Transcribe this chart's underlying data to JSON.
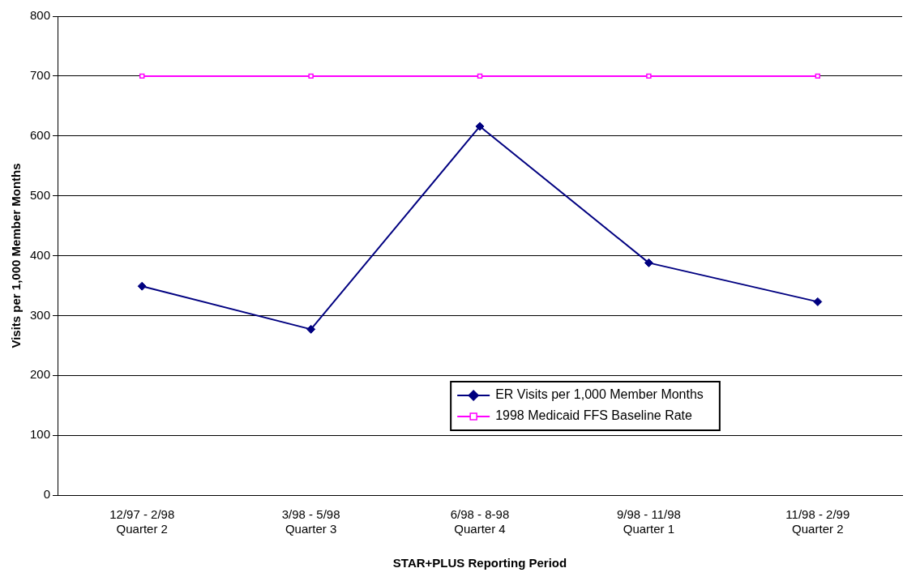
{
  "chart_data": {
    "type": "line",
    "xlabel": "STAR+PLUS Reporting Period",
    "ylabel": "Visits per 1,000 Member Months",
    "categories": [
      "12/97 - 2/98\nQuarter 2",
      "3/98 - 5/98\nQuarter 3",
      "6/98 - 8-98\nQuarter 4",
      "9/98 - 11/98\nQuarter 1",
      "11/98 - 2/99\nQuarter 2"
    ],
    "series": [
      {
        "name": "ER Visits per 1,000 Member Months",
        "color": "#000080",
        "marker": "diamond",
        "values": [
          349,
          277,
          616,
          388,
          323
        ]
      },
      {
        "name": "1998 Medicaid FFS Baseline Rate",
        "color": "#ff00ff",
        "marker": "square",
        "values": [
          700,
          700,
          700,
          700,
          700
        ]
      }
    ],
    "ylim": [
      0,
      800
    ],
    "yticks": [
      0,
      100,
      200,
      300,
      400,
      500,
      600,
      700,
      800
    ],
    "grid": "y",
    "legend": "bottom",
    "line_style": "solid"
  }
}
